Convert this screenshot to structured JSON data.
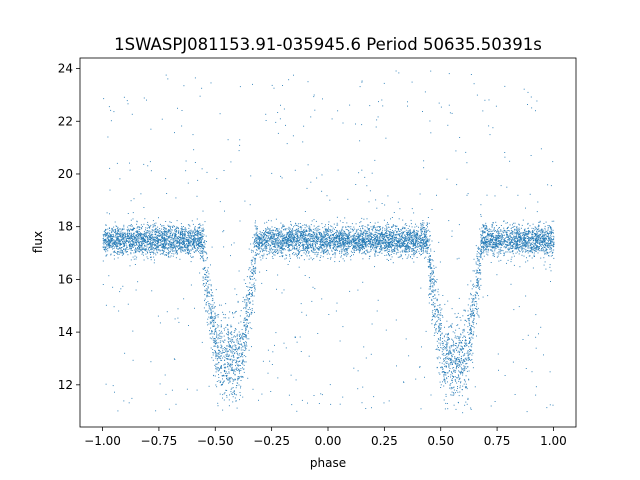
{
  "chart_data": {
    "type": "scatter",
    "title": "1SWASPJ081153.91-035945.6 Period 50635.50391s",
    "xlabel": "phase",
    "ylabel": "flux",
    "xlim": [
      -1.1,
      1.1
    ],
    "ylim": [
      10.4,
      24.4
    ],
    "x_ticks": [
      -1.0,
      -0.75,
      -0.5,
      -0.25,
      0.0,
      0.25,
      0.5,
      0.75,
      1.0
    ],
    "x_tick_labels": [
      "−1.00",
      "−0.75",
      "−0.50",
      "−0.25",
      "0.00",
      "0.25",
      "0.50",
      "0.75",
      "1.00"
    ],
    "y_ticks": [
      12,
      14,
      16,
      18,
      20,
      22,
      24
    ],
    "y_tick_labels": [
      "12",
      "14",
      "16",
      "18",
      "20",
      "22",
      "24"
    ],
    "grid": false,
    "marker_color": "#1f77b4",
    "x_range": [
      -1.0,
      1.0
    ],
    "baseline_flux": 17.5,
    "eclipse_centers": [
      -0.44,
      0.56
    ],
    "eclipse_min_flux": 13.0
  }
}
